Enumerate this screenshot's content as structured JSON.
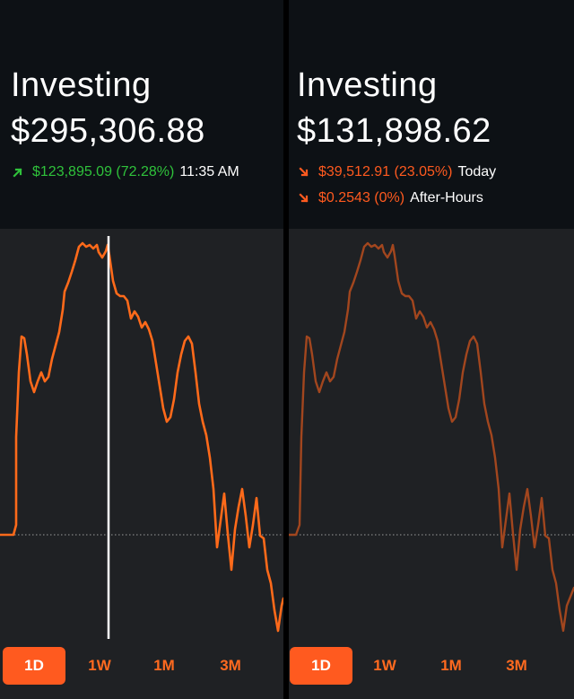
{
  "colors": {
    "accent": "#ff5a1f",
    "gain": "#2fc23b",
    "header_bg": "#0d1115",
    "chart_bg": "#1f2124",
    "line_left": "#ff6a1a",
    "line_right": "#a2461e",
    "scrubber": "#ffffff"
  },
  "left": {
    "title": "Investing",
    "value": "$295,306.88",
    "change": {
      "icon": "arrow-up-right-icon",
      "amount_pct": "$123,895.09 (72.28%)",
      "time": "11:35 AM"
    },
    "tabs": [
      {
        "label": "1D",
        "active": true
      },
      {
        "label": "1W",
        "active": false
      },
      {
        "label": "1M",
        "active": false
      },
      {
        "label": "3M",
        "active": false
      }
    ]
  },
  "right": {
    "title": "Investing",
    "value": "$131,898.62",
    "change_today": {
      "icon": "arrow-down-right-icon",
      "amount_pct": "$39,512.91 (23.05%)",
      "label": "Today"
    },
    "change_after_hours": {
      "icon": "arrow-down-right-icon",
      "amount_pct": "$0.2543 (0%)",
      "label": "After-Hours"
    },
    "tabs": [
      {
        "label": "1D",
        "active": true
      },
      {
        "label": "1W",
        "active": false
      },
      {
        "label": "1M",
        "active": false
      },
      {
        "label": "3M",
        "active": false
      }
    ]
  }
}
